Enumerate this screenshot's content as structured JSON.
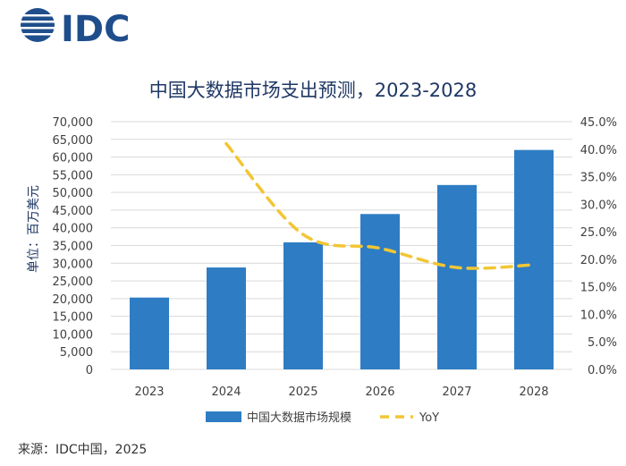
{
  "logo": {
    "text": "IDC",
    "color": "#1f4e8c"
  },
  "source": "来源：IDC中国，2025",
  "colors": {
    "bar": "#2e7dc4",
    "line": "#f2c634",
    "title": "#1f3864",
    "text": "#404040",
    "grid": "#d9d9d9"
  },
  "chart_data": {
    "type": "bar",
    "title": "中国大数据市场支出预测，2023-2028",
    "ylabel": "单位：百万美元",
    "categories": [
      "2023",
      "2024",
      "2025",
      "2026",
      "2027",
      "2028"
    ],
    "series": [
      {
        "name": "中国大数据市场规模",
        "type": "bar",
        "axis": "left",
        "values": [
          20300,
          28800,
          35900,
          43900,
          52100,
          62000
        ]
      },
      {
        "name": "YoY",
        "type": "line",
        "style": "dashed",
        "axis": "right",
        "values": [
          null,
          41.0,
          24.5,
          22.0,
          18.5,
          19.0
        ]
      }
    ],
    "ylim": [
      0,
      70000
    ],
    "ylim_right": [
      0,
      45
    ],
    "yticks": [
      "0",
      "5,000",
      "10,000",
      "15,000",
      "20,000",
      "25,000",
      "30,000",
      "35,000",
      "40,000",
      "45,000",
      "50,000",
      "55,000",
      "60,000",
      "65,000",
      "70,000"
    ],
    "yticks_right": [
      "0.0%",
      "5.0%",
      "10.0%",
      "15.0%",
      "20.0%",
      "25.0%",
      "30.0%",
      "35.0%",
      "40.0%",
      "45.0%"
    ],
    "grid": true,
    "legend": "bottom"
  }
}
